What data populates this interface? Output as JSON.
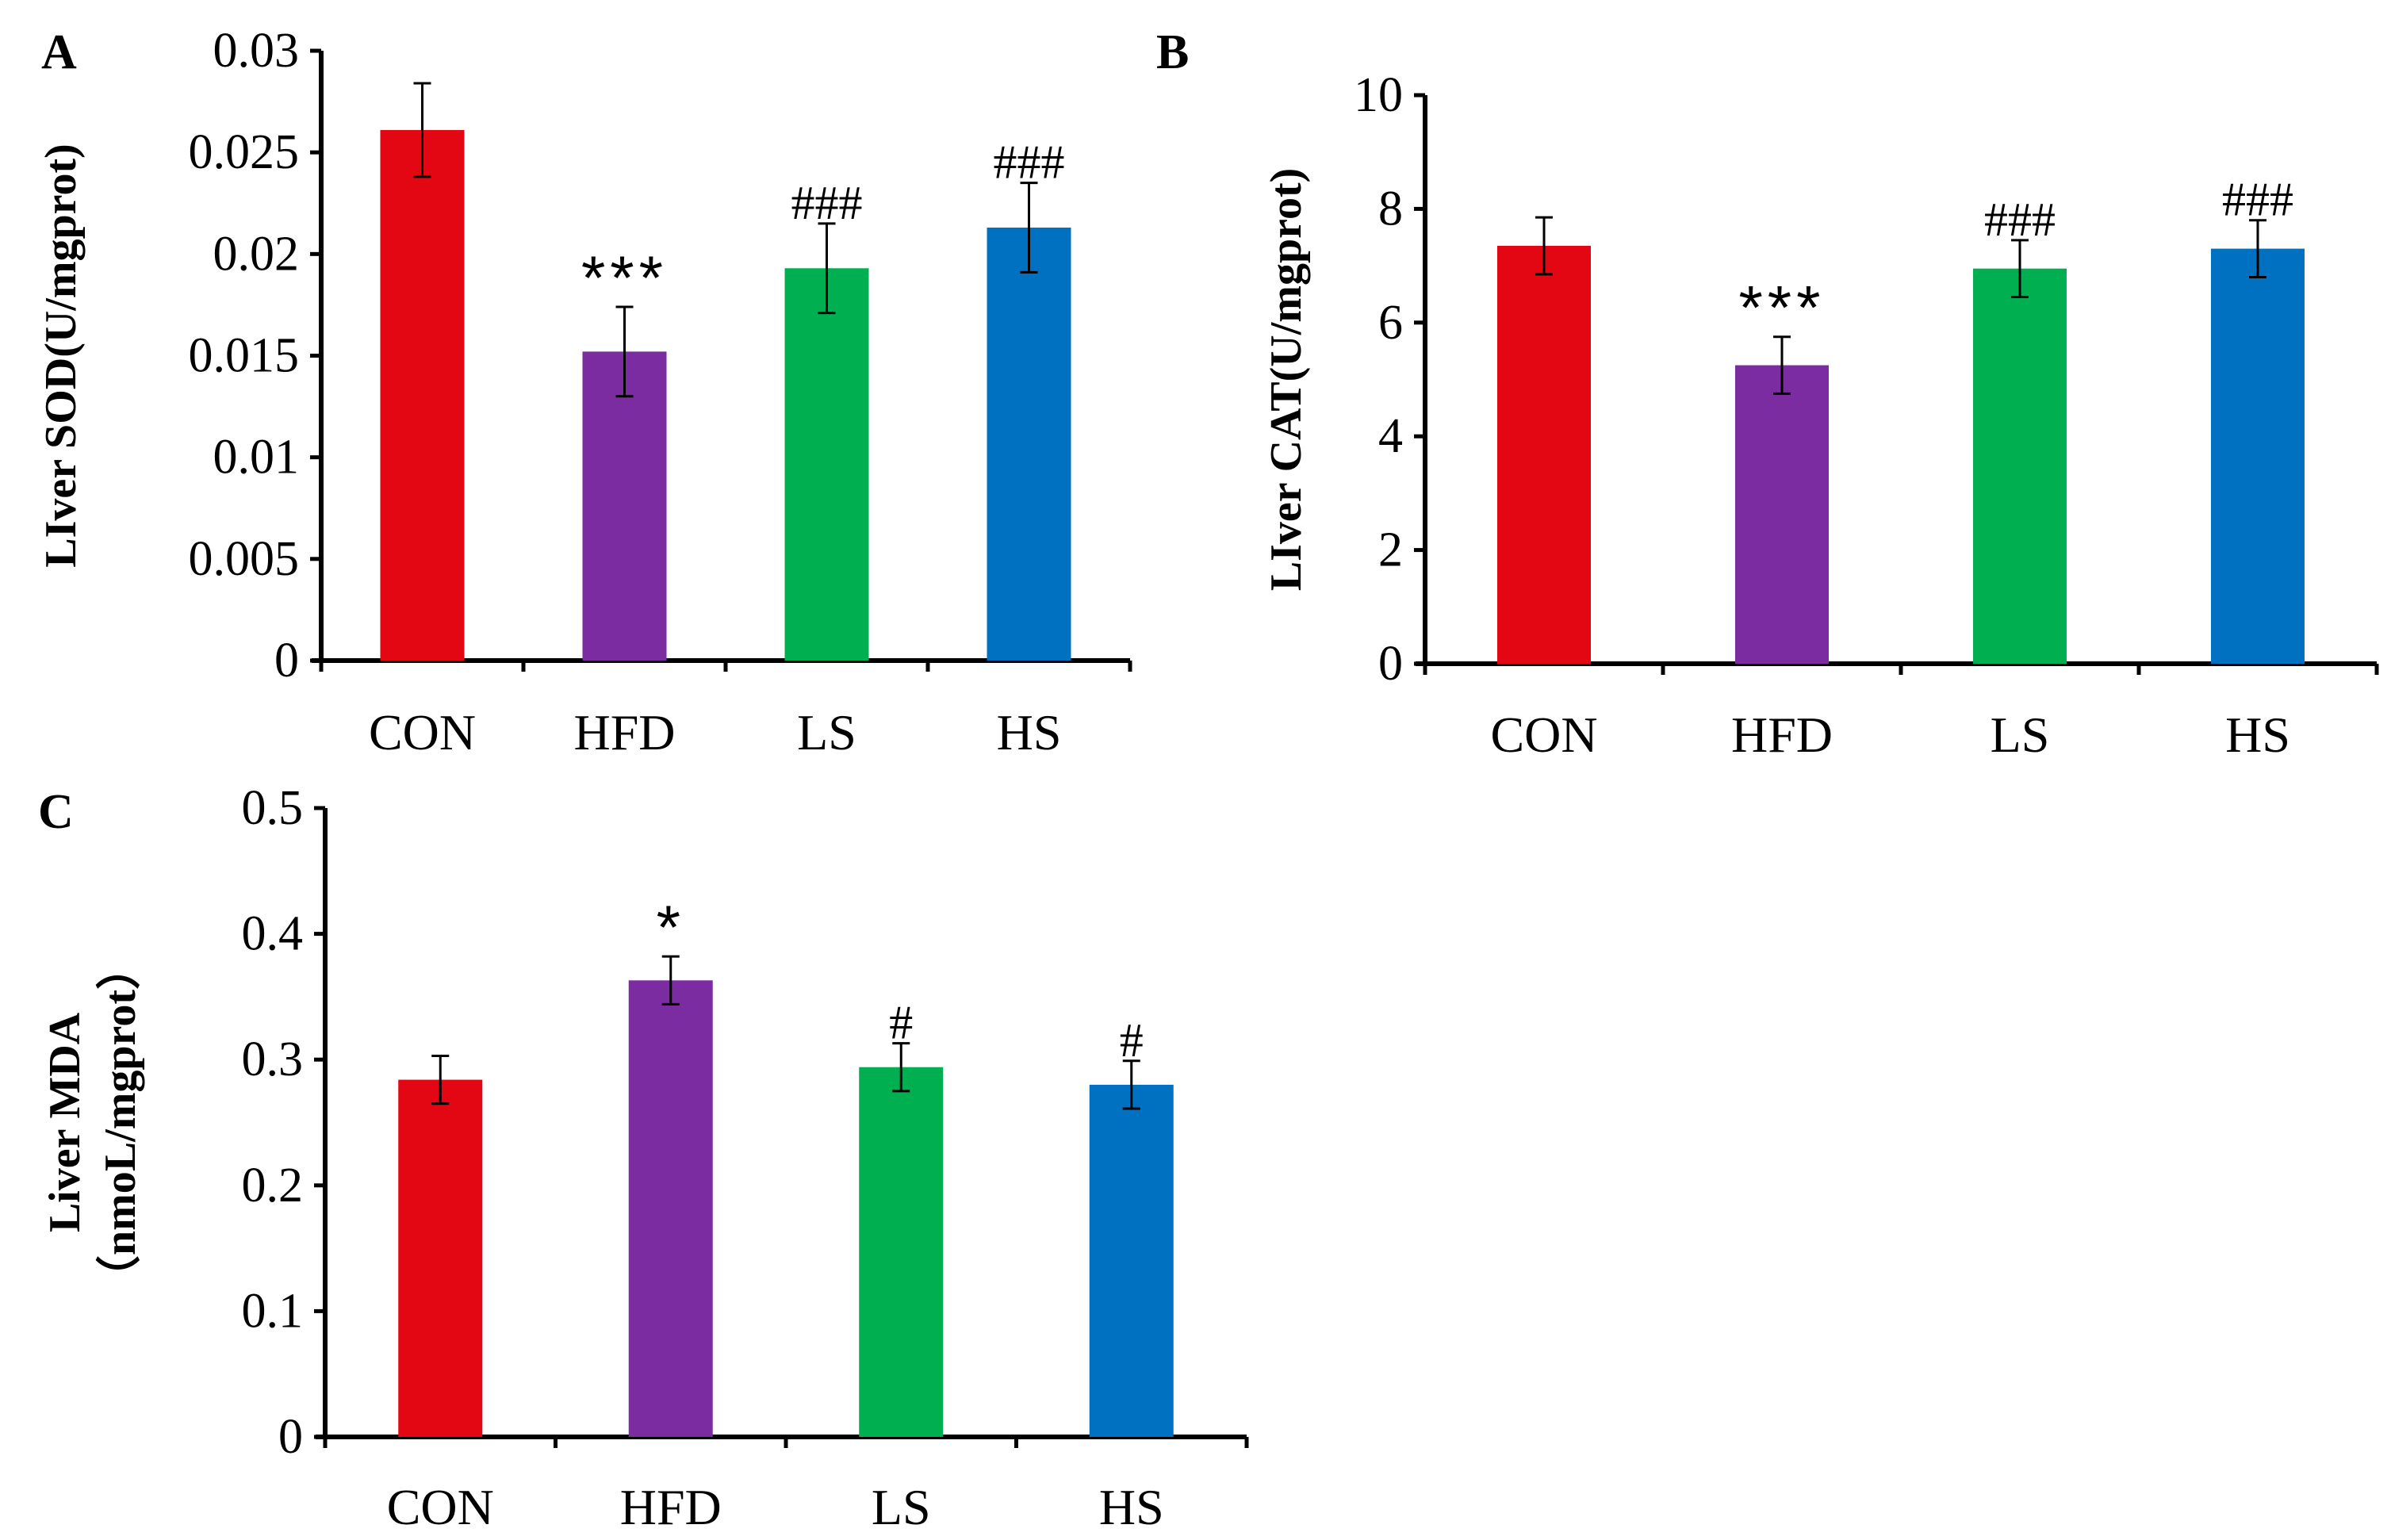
{
  "chart_data": [
    {
      "panel": "A",
      "type": "bar",
      "categories": [
        "CON",
        "HFD",
        "LS",
        "HS"
      ],
      "values": [
        0.0261,
        0.0152,
        0.0193,
        0.0213
      ],
      "errors": [
        0.0023,
        0.0022,
        0.0022,
        0.0022
      ],
      "annotations": [
        "",
        "***",
        "###",
        "###"
      ],
      "colors": [
        "#e30613",
        "#7b2ca0",
        "#00b050",
        "#0070c0"
      ],
      "ylabel": "LIver SOD(U/mgprot)",
      "ylabel_lines": [
        "LIver SOD(U/mgprot)"
      ],
      "xlabel": "",
      "ylim": [
        0,
        0.03
      ],
      "yticks": [
        0,
        0.005,
        0.01,
        0.015,
        0.02,
        0.025,
        0.03
      ],
      "ytick_labels": [
        "0",
        "0.005",
        "0.01",
        "0.015",
        "0.02",
        "0.025",
        "0.03"
      ]
    },
    {
      "panel": "B",
      "type": "bar",
      "categories": [
        "CON",
        "HFD",
        "LS",
        "HS"
      ],
      "values": [
        7.35,
        5.25,
        6.95,
        7.3
      ],
      "errors": [
        0.5,
        0.5,
        0.5,
        0.5
      ],
      "annotations": [
        "",
        "***",
        "###",
        "###"
      ],
      "colors": [
        "#e30613",
        "#7b2ca0",
        "#00b050",
        "#0070c0"
      ],
      "ylabel": "LIver CAT(U/mgprot)",
      "ylabel_lines": [
        "LIver CAT(U/mgprot)"
      ],
      "xlabel": "",
      "ylim": [
        0,
        10
      ],
      "yticks": [
        0,
        2,
        4,
        6,
        8,
        10
      ],
      "ytick_labels": [
        "0",
        "2",
        "4",
        "6",
        "8",
        "10"
      ]
    },
    {
      "panel": "C",
      "type": "bar",
      "categories": [
        "CON",
        "HFD",
        "LS",
        "HS"
      ],
      "values": [
        0.284,
        0.363,
        0.294,
        0.28
      ],
      "errors": [
        0.019,
        0.019,
        0.019,
        0.019
      ],
      "annotations": [
        "",
        "*",
        "#",
        "#"
      ],
      "colors": [
        "#e30613",
        "#7b2ca0",
        "#00b050",
        "#0070c0"
      ],
      "ylabel": "Liver MDA （nmoL/mgprot）",
      "ylabel_lines": [
        "Liver MDA",
        "（nmoL/mgprot）"
      ],
      "xlabel": "",
      "ylim": [
        0,
        0.5
      ],
      "yticks": [
        0,
        0.1,
        0.2,
        0.3,
        0.4,
        0.5
      ],
      "ytick_labels": [
        "0",
        "0.1",
        "0.2",
        "0.3",
        "0.4",
        "0.5"
      ]
    }
  ]
}
